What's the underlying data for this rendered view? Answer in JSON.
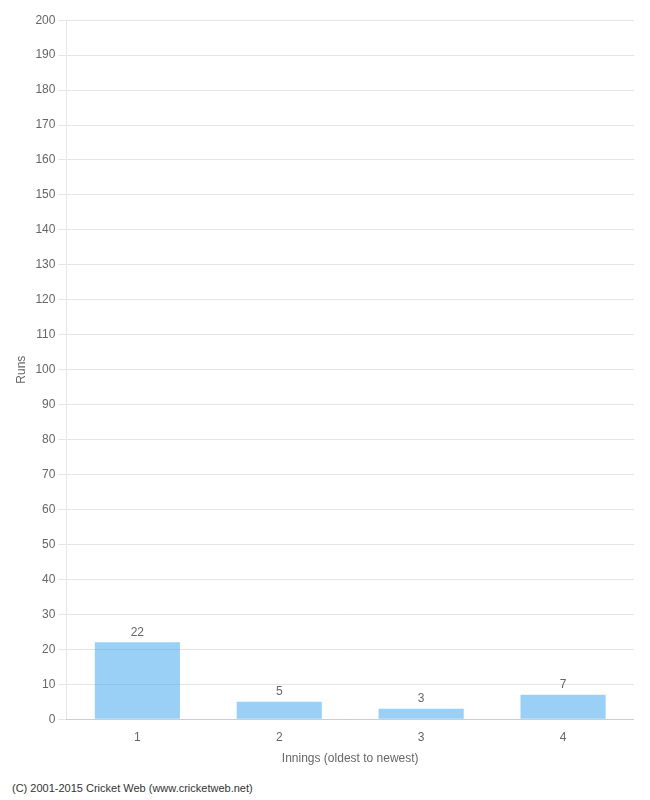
{
  "chart_data": {
    "type": "bar",
    "categories": [
      "1",
      "2",
      "3",
      "4"
    ],
    "values": [
      22,
      5,
      3,
      7
    ],
    "xlabel": "Innings (oldest to newest)",
    "ylabel": "Runs",
    "ylim": [
      0,
      200
    ],
    "yticks": [
      0,
      10,
      20,
      30,
      40,
      50,
      60,
      70,
      80,
      90,
      100,
      110,
      120,
      130,
      140,
      150,
      160,
      170,
      180,
      190,
      200
    ],
    "grid": true,
    "data_labels": true,
    "footer": "(C) 2001-2015 Cricket Web (www.cricketweb.net)"
  }
}
